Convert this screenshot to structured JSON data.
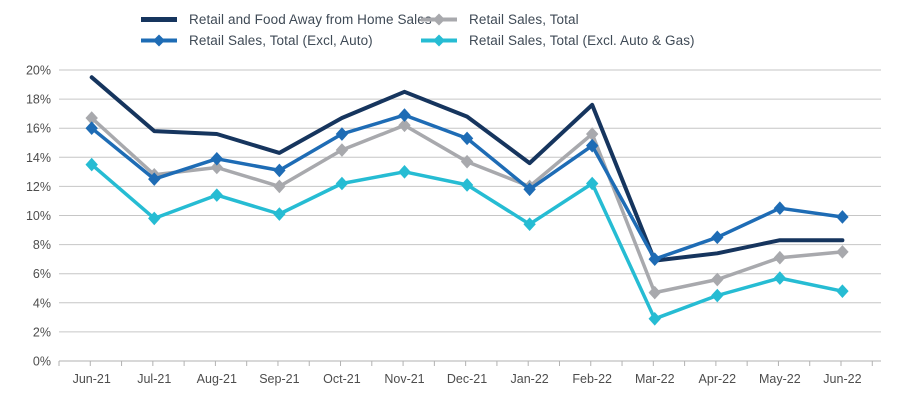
{
  "chart_data": {
    "type": "line",
    "title": "",
    "categories": [
      "Jun-21",
      "Jul-21",
      "Aug-21",
      "Sep-21",
      "Oct-21",
      "Nov-21",
      "Dec-21",
      "Jan-22",
      "Feb-22",
      "Mar-22",
      "Apr-22",
      "May-22",
      "Jun-22"
    ],
    "y_axis": {
      "min": 0,
      "max": 20,
      "step": 2,
      "unit": "%",
      "tick_labels": [
        "0%",
        "2%",
        "4%",
        "6%",
        "8%",
        "10%",
        "12%",
        "14%",
        "16%",
        "18%",
        "20%"
      ]
    },
    "grid": true,
    "legend_position": "top",
    "series": [
      {
        "name": "Retail and Food Away from Home Sales",
        "color": "#16355e",
        "marker": "none",
        "line_width": 4,
        "values": [
          19.5,
          15.8,
          15.6,
          14.3,
          16.7,
          18.5,
          16.8,
          13.6,
          17.6,
          6.9,
          7.4,
          8.3,
          8.3
        ]
      },
      {
        "name": "Retail Sales, Total (Excl, Auto)",
        "color": "#1e6cb5",
        "marker": "diamond",
        "line_width": 3.5,
        "values": [
          16.0,
          12.5,
          13.9,
          13.1,
          15.6,
          16.9,
          15.3,
          11.8,
          14.8,
          7.0,
          8.5,
          10.5,
          9.9
        ]
      },
      {
        "name": "Retail Sales, Total",
        "color": "#a8a9ad",
        "marker": "diamond",
        "line_width": 3.5,
        "values": [
          16.7,
          12.8,
          13.3,
          12.0,
          14.5,
          16.2,
          13.7,
          12.0,
          15.6,
          4.7,
          5.6,
          7.1,
          7.5
        ]
      },
      {
        "name": "Retail Sales, Total (Excl. Auto & Gas)",
        "color": "#26bcd3",
        "marker": "diamond",
        "line_width": 3.5,
        "values": [
          13.5,
          9.8,
          11.4,
          10.1,
          12.2,
          13.0,
          12.1,
          9.4,
          12.2,
          2.9,
          4.5,
          5.7,
          4.8
        ]
      }
    ],
    "colors": {
      "gridline": "#c6c6c6",
      "axis": "#b2b2b2",
      "tick_label": "#4d4d4d",
      "legend_text": "#3f4a56",
      "background": "#ffffff"
    }
  }
}
